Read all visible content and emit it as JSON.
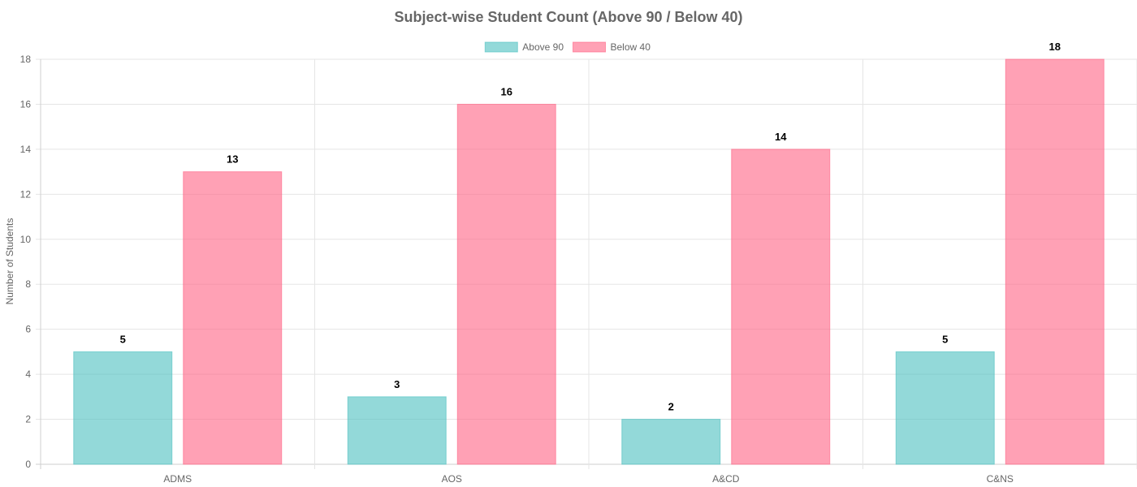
{
  "chart_data": {
    "type": "bar",
    "title": "Subject-wise Student Count (Above 90 / Below 40)",
    "xlabel": "",
    "ylabel": "Number of Students",
    "categories": [
      "ADMS",
      "AOS",
      "A&CD",
      "C&NS"
    ],
    "series": [
      {
        "name": "Above 90",
        "values": [
          5,
          3,
          2,
          5
        ],
        "color": "#4BC0C0"
      },
      {
        "name": "Below 40",
        "values": [
          13,
          16,
          14,
          18
        ],
        "color": "#FF6384"
      }
    ],
    "ylim": [
      0,
      18
    ],
    "yticks": [
      0,
      2,
      4,
      6,
      8,
      10,
      12,
      14,
      16,
      18
    ],
    "grid": true,
    "legend_position": "top-center",
    "data_labels": true
  }
}
